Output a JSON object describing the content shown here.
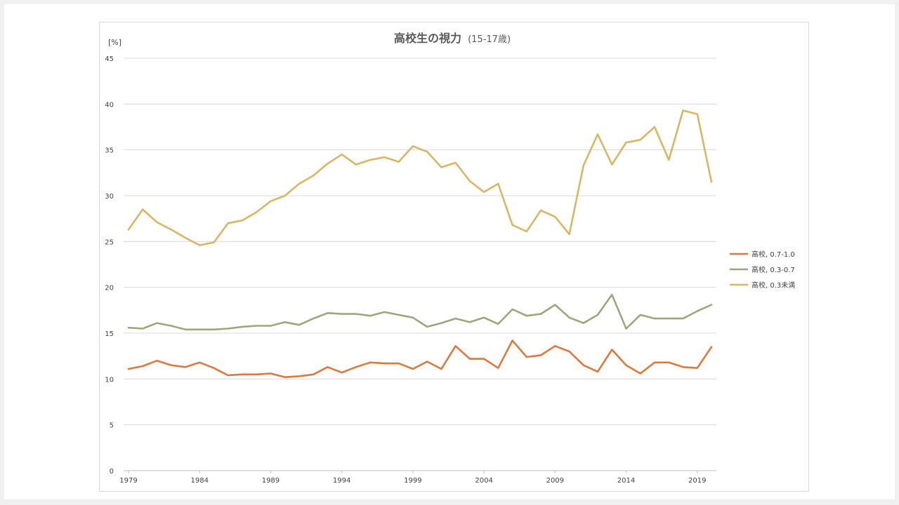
{
  "chart_data": {
    "type": "line",
    "title": "高校生の視力",
    "subtitle": "(15-17歳)",
    "ylabel": "[%]",
    "xlabel": "",
    "ylim": [
      0,
      45
    ],
    "yticks": [
      0,
      5,
      10,
      15,
      20,
      25,
      30,
      35,
      40,
      45
    ],
    "xlim": [
      1979,
      2020
    ],
    "xticks": [
      1979,
      1984,
      1989,
      1994,
      1999,
      2004,
      2009,
      2014,
      2019
    ],
    "grid": true,
    "legend": "right",
    "x": [
      1979,
      1980,
      1981,
      1982,
      1983,
      1984,
      1985,
      1986,
      1987,
      1988,
      1989,
      1990,
      1991,
      1992,
      1993,
      1994,
      1995,
      1996,
      1997,
      1998,
      1999,
      2000,
      2001,
      2002,
      2003,
      2004,
      2005,
      2006,
      2007,
      2008,
      2009,
      2010,
      2011,
      2012,
      2013,
      2014,
      2015,
      2016,
      2017,
      2018,
      2019,
      2020
    ],
    "series": [
      {
        "name": "高校, 0.7-1.0",
        "color": "#dc7a3e",
        "values": [
          11.1,
          11.4,
          12.0,
          11.5,
          11.3,
          11.8,
          11.2,
          10.4,
          10.5,
          10.5,
          10.6,
          10.2,
          10.3,
          10.5,
          11.3,
          10.7,
          11.3,
          11.8,
          11.7,
          11.7,
          11.1,
          11.9,
          11.1,
          13.6,
          12.2,
          12.2,
          11.2,
          14.2,
          12.4,
          12.6,
          13.6,
          13.0,
          11.5,
          10.8,
          13.2,
          11.5,
          10.6,
          11.8,
          11.8,
          11.3,
          11.2,
          13.5
        ]
      },
      {
        "name": "高校, 0.3-0.7",
        "color": "#9fa67d",
        "values": [
          15.6,
          15.5,
          16.1,
          15.8,
          15.4,
          15.4,
          15.4,
          15.5,
          15.7,
          15.8,
          15.8,
          16.2,
          15.9,
          16.6,
          17.2,
          17.1,
          17.1,
          16.9,
          17.3,
          17.0,
          16.7,
          15.7,
          16.1,
          16.6,
          16.2,
          16.7,
          16.0,
          17.6,
          16.9,
          17.1,
          18.1,
          16.7,
          16.1,
          17.0,
          19.2,
          15.5,
          17.0,
          16.6,
          16.6,
          16.6,
          17.4,
          18.1
        ]
      },
      {
        "name": "高校, 0.3未満",
        "color": "#d9b664",
        "values": [
          26.3,
          28.5,
          27.1,
          26.3,
          25.4,
          24.6,
          24.9,
          27.0,
          27.3,
          28.2,
          29.4,
          30.0,
          31.3,
          32.2,
          33.5,
          34.5,
          33.4,
          33.9,
          34.2,
          33.7,
          35.4,
          34.8,
          33.1,
          33.6,
          31.6,
          30.4,
          31.3,
          26.8,
          26.1,
          28.4,
          27.7,
          25.8,
          33.3,
          36.7,
          33.4,
          35.8,
          36.1,
          37.5,
          33.9,
          39.3,
          38.9,
          31.5
        ]
      }
    ]
  }
}
